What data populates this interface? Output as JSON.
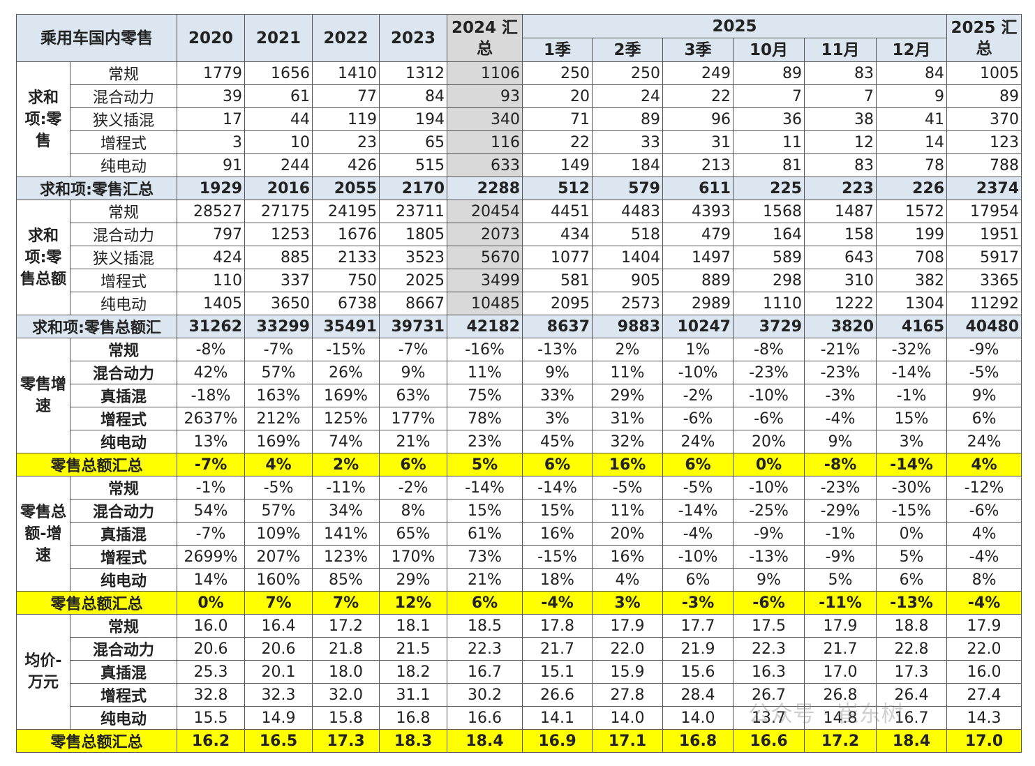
{
  "header": {
    "corner": "乘用车国内零售",
    "years": [
      "2020",
      "2021",
      "2022",
      "2023"
    ],
    "total2024": "2024 汇总",
    "year2025": "2025",
    "periods": [
      "1季",
      "2季",
      "3季",
      "10月",
      "11月",
      "12月"
    ],
    "total2025": "2025 汇总"
  },
  "sections": [
    {
      "label": "求和项:零售",
      "rows": [
        {
          "label": "常规",
          "values": [
            "1779",
            "1656",
            "1410",
            "1312",
            "1106",
            "250",
            "250",
            "249",
            "89",
            "83",
            "84",
            "1005"
          ]
        },
        {
          "label": "混合动力",
          "values": [
            "39",
            "61",
            "77",
            "84",
            "93",
            "20",
            "24",
            "22",
            "7",
            "7",
            "9",
            "89"
          ]
        },
        {
          "label": "狭义插混",
          "values": [
            "17",
            "44",
            "119",
            "194",
            "340",
            "71",
            "89",
            "96",
            "36",
            "38",
            "41",
            "370"
          ]
        },
        {
          "label": "增程式",
          "values": [
            "3",
            "10",
            "23",
            "65",
            "116",
            "22",
            "33",
            "31",
            "11",
            "12",
            "14",
            "123"
          ]
        },
        {
          "label": "纯电动",
          "values": [
            "91",
            "244",
            "426",
            "515",
            "633",
            "149",
            "184",
            "213",
            "81",
            "83",
            "78",
            "788"
          ]
        }
      ],
      "total": {
        "label": "求和项:零售汇总",
        "values": [
          "1929",
          "2016",
          "2055",
          "2170",
          "2288",
          "512",
          "579",
          "611",
          "225",
          "223",
          "226",
          "2374"
        ]
      }
    },
    {
      "label": "求和项:零售总额",
      "rows": [
        {
          "label": "常规",
          "values": [
            "28527",
            "27175",
            "24195",
            "23711",
            "20454",
            "4451",
            "4483",
            "4393",
            "1568",
            "1487",
            "1572",
            "17954"
          ]
        },
        {
          "label": "混合动力",
          "values": [
            "797",
            "1253",
            "1676",
            "1805",
            "2073",
            "434",
            "518",
            "479",
            "164",
            "158",
            "199",
            "1951"
          ]
        },
        {
          "label": "狭义插混",
          "values": [
            "424",
            "885",
            "2133",
            "3523",
            "5670",
            "1077",
            "1404",
            "1497",
            "589",
            "643",
            "708",
            "5917"
          ]
        },
        {
          "label": "增程式",
          "values": [
            "110",
            "337",
            "750",
            "2025",
            "3499",
            "581",
            "905",
            "889",
            "298",
            "310",
            "382",
            "3365"
          ]
        },
        {
          "label": "纯电动",
          "values": [
            "1405",
            "3650",
            "6738",
            "8667",
            "10485",
            "2095",
            "2573",
            "2989",
            "1110",
            "1222",
            "1304",
            "11292"
          ]
        }
      ],
      "total": {
        "label": "求和项:零售总额汇",
        "values": [
          "31262",
          "33299",
          "35491",
          "39731",
          "42182",
          "8637",
          "9883",
          "10247",
          "3729",
          "3820",
          "4165",
          "40480"
        ]
      }
    },
    {
      "label": "零售增速",
      "rows": [
        {
          "label": "常规",
          "values": [
            "-8%",
            "-7%",
            "-15%",
            "-7%",
            "-16%",
            "-13%",
            "2%",
            "1%",
            "-8%",
            "-21%",
            "-32%",
            "-9%"
          ]
        },
        {
          "label": "混合动力",
          "values": [
            "42%",
            "57%",
            "26%",
            "9%",
            "11%",
            "9%",
            "11%",
            "-10%",
            "-23%",
            "-23%",
            "-14%",
            "-5%"
          ]
        },
        {
          "label": "真插混",
          "values": [
            "-18%",
            "163%",
            "169%",
            "63%",
            "75%",
            "33%",
            "29%",
            "-2%",
            "-10%",
            "-3%",
            "-1%",
            "9%"
          ]
        },
        {
          "label": "增程式",
          "values": [
            "2637%",
            "212%",
            "125%",
            "177%",
            "78%",
            "3%",
            "31%",
            "-6%",
            "-6%",
            "-4%",
            "15%",
            "6%"
          ]
        },
        {
          "label": "纯电动",
          "values": [
            "13%",
            "169%",
            "74%",
            "21%",
            "23%",
            "45%",
            "32%",
            "24%",
            "20%",
            "9%",
            "3%",
            "24%"
          ]
        }
      ],
      "total": {
        "label": "零售总额汇总",
        "values": [
          "-7%",
          "4%",
          "2%",
          "6%",
          "5%",
          "6%",
          "16%",
          "6%",
          "0%",
          "-8%",
          "-14%",
          "4%"
        ]
      }
    },
    {
      "label": "零售总额-增速",
      "rows": [
        {
          "label": "常规",
          "values": [
            "-1%",
            "-5%",
            "-11%",
            "-2%",
            "-14%",
            "-14%",
            "-5%",
            "-5%",
            "-10%",
            "-23%",
            "-30%",
            "-12%"
          ]
        },
        {
          "label": "混合动力",
          "values": [
            "54%",
            "57%",
            "34%",
            "8%",
            "15%",
            "15%",
            "11%",
            "-14%",
            "-25%",
            "-29%",
            "-15%",
            "-6%"
          ]
        },
        {
          "label": "真插混",
          "values": [
            "-7%",
            "109%",
            "141%",
            "65%",
            "61%",
            "16%",
            "20%",
            "-4%",
            "-9%",
            "-1%",
            "0%",
            "4%"
          ]
        },
        {
          "label": "增程式",
          "values": [
            "2699%",
            "207%",
            "123%",
            "170%",
            "73%",
            "-15%",
            "16%",
            "-10%",
            "-13%",
            "-9%",
            "5%",
            "-4%"
          ]
        },
        {
          "label": "纯电动",
          "values": [
            "14%",
            "160%",
            "85%",
            "29%",
            "21%",
            "18%",
            "4%",
            "6%",
            "9%",
            "5%",
            "6%",
            "8%"
          ]
        }
      ],
      "total": {
        "label": "零售总额汇总",
        "values": [
          "0%",
          "7%",
          "7%",
          "12%",
          "6%",
          "-4%",
          "3%",
          "-3%",
          "-6%",
          "-11%",
          "-13%",
          "-4%"
        ]
      }
    },
    {
      "label": "均价-万元",
      "rows": [
        {
          "label": "常规",
          "values": [
            "16.0",
            "16.4",
            "17.2",
            "18.1",
            "18.5",
            "17.8",
            "17.9",
            "17.7",
            "17.5",
            "17.9",
            "18.8",
            "17.9"
          ]
        },
        {
          "label": "混合动力",
          "values": [
            "20.6",
            "20.6",
            "21.8",
            "21.5",
            "22.3",
            "21.7",
            "22.0",
            "21.9",
            "22.3",
            "21.7",
            "22.8",
            "22.0"
          ]
        },
        {
          "label": "真插混",
          "values": [
            "25.3",
            "20.1",
            "18.0",
            "18.2",
            "16.7",
            "15.1",
            "15.9",
            "15.6",
            "16.3",
            "17.0",
            "17.3",
            "16.0"
          ]
        },
        {
          "label": "增程式",
          "values": [
            "32.8",
            "32.3",
            "32.0",
            "31.1",
            "30.2",
            "26.6",
            "27.8",
            "28.4",
            "26.7",
            "26.8",
            "26.4",
            "27.4"
          ]
        },
        {
          "label": "纯电动",
          "values": [
            "15.5",
            "14.9",
            "15.8",
            "16.8",
            "16.6",
            "14.1",
            "14.0",
            "14.0",
            "13.7",
            "14.8",
            "16.7",
            "14.3"
          ]
        }
      ],
      "total": {
        "label": "零售总额汇总",
        "values": [
          "16.2",
          "16.5",
          "17.3",
          "18.3",
          "18.4",
          "16.9",
          "17.1",
          "16.8",
          "16.6",
          "17.2",
          "18.4",
          "17.0"
        ]
      }
    }
  ],
  "watermark": "公众号 · 崔东树"
}
